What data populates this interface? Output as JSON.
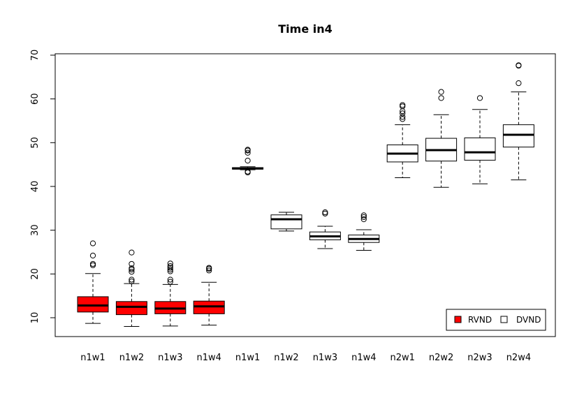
{
  "chart_data": {
    "type": "boxplot",
    "title": "Time in4",
    "xlabel": "",
    "ylabel": "",
    "ylim": [
      5.5,
      70
    ],
    "yticks": [
      10,
      20,
      30,
      40,
      50,
      60,
      70
    ],
    "grid": false,
    "legend_position": "bottom-right",
    "legend": [
      {
        "label": "RVND",
        "color": "#ff0000"
      },
      {
        "label": "DVND",
        "color": "#ffffff"
      }
    ],
    "categories": [
      "n1w1",
      "n1w2",
      "n1w3",
      "n1w4",
      "n1w1",
      "n1w2",
      "n1w3",
      "n1w4",
      "n2w1",
      "n2w2",
      "n2w3",
      "n2w4"
    ],
    "boxes": [
      {
        "label": "n1w1",
        "group": "RVND",
        "whisker_low": 8.7,
        "q1": 11.3,
        "median": 12.8,
        "q3": 14.8,
        "whisker_high": 20.1,
        "outliers": [
          22.0,
          22.3,
          24.2,
          27.0
        ]
      },
      {
        "label": "n1w2",
        "group": "RVND",
        "whisker_low": 8.0,
        "q1": 10.7,
        "median": 12.5,
        "q3": 13.7,
        "whisker_high": 17.8,
        "outliers": [
          18.3,
          18.7,
          20.5,
          21.0,
          21.3,
          22.3,
          24.9
        ]
      },
      {
        "label": "n1w3",
        "group": "RVND",
        "whisker_low": 8.1,
        "q1": 10.9,
        "median": 12.1,
        "q3": 13.7,
        "whisker_high": 17.6,
        "outliers": [
          18.2,
          18.7,
          20.6,
          21.0,
          21.4,
          21.8,
          22.4
        ]
      },
      {
        "label": "n1w4",
        "group": "RVND",
        "whisker_low": 8.3,
        "q1": 10.9,
        "median": 12.6,
        "q3": 13.8,
        "whisker_high": 18.1,
        "outliers": [
          20.8,
          21.2,
          21.4
        ]
      },
      {
        "label": "n1w1",
        "group": "DVND",
        "whisker_low": 43.8,
        "q1": 43.95,
        "median": 44.1,
        "q3": 44.3,
        "whisker_high": 44.5,
        "outliers": [
          43.2,
          43.4,
          45.9,
          47.7,
          48.2,
          48.4
        ]
      },
      {
        "label": "n1w2",
        "group": "DVND",
        "whisker_low": 29.8,
        "q1": 30.3,
        "median": 32.5,
        "q3": 33.5,
        "whisker_high": 34.1,
        "outliers": []
      },
      {
        "label": "n1w3",
        "group": "DVND",
        "whisker_low": 25.8,
        "q1": 27.8,
        "median": 28.6,
        "q3": 29.6,
        "whisker_high": 30.9,
        "outliers": [
          33.8,
          34.1
        ]
      },
      {
        "label": "n1w4",
        "group": "DVND",
        "whisker_low": 25.4,
        "q1": 27.2,
        "median": 28.0,
        "q3": 28.9,
        "whisker_high": 30.1,
        "outliers": [
          32.5,
          33.0,
          33.4
        ]
      },
      {
        "label": "n2w1",
        "group": "DVND",
        "whisker_low": 42.0,
        "q1": 45.6,
        "median": 47.5,
        "q3": 49.5,
        "whisker_high": 54.1,
        "outliers": [
          55.4,
          55.9,
          56.7,
          57.2,
          58.3,
          58.6
        ]
      },
      {
        "label": "n2w2",
        "group": "DVND",
        "whisker_low": 39.8,
        "q1": 45.8,
        "median": 48.3,
        "q3": 51.0,
        "whisker_high": 56.4,
        "outliers": [
          60.2,
          61.6
        ]
      },
      {
        "label": "n2w3",
        "group": "DVND",
        "whisker_low": 40.6,
        "q1": 46.0,
        "median": 47.8,
        "q3": 51.1,
        "whisker_high": 57.6,
        "outliers": [
          60.2
        ]
      },
      {
        "label": "n2w4",
        "group": "DVND",
        "whisker_low": 41.5,
        "q1": 49.0,
        "median": 51.8,
        "q3": 54.1,
        "whisker_high": 61.6,
        "outliers": [
          63.6,
          67.6,
          67.7
        ]
      }
    ]
  }
}
